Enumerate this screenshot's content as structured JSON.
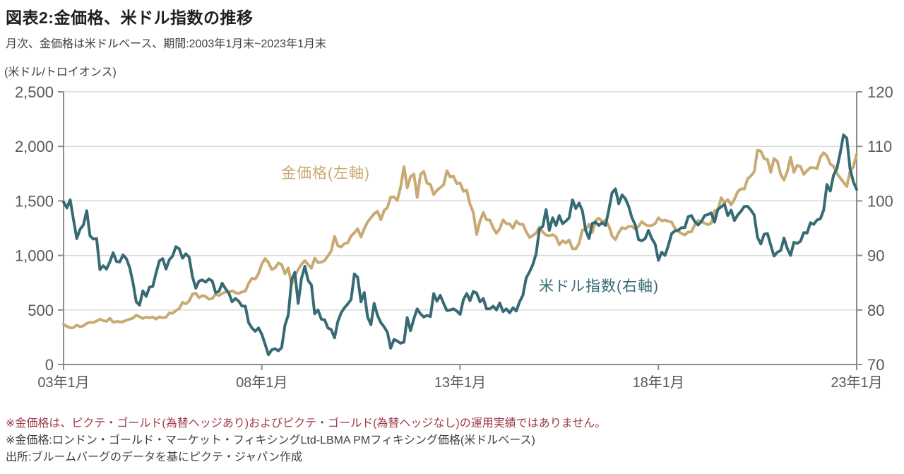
{
  "header": {
    "title": "図表2:金価格、米ドル指数の推移",
    "subtitle": "月次、金価格は米ドルベース、期間:2003年1月末~2023年1月末"
  },
  "footnotes": {
    "note1": "※金価格は、ピクテ・ゴールド(為替ヘッジあり)およびピクテ・ゴールド(為替ヘッジなし)の運用実績ではありません。",
    "note2": "※金価格:ロンドン・ゴールド・マーケット・フィキシングLtd-LBMA PMフィキシング価格(米ドルベース)",
    "source": "出所:ブルームバーグのデータを基にピクテ・ジャパン作成"
  },
  "colors": {
    "gold": "#c8aa73",
    "teal": "#366b74",
    "axis": "#8c8c8c",
    "grid": "#d9d9d9",
    "tick_text": "#595959",
    "note_red": "#9e3a44"
  },
  "chart_data": {
    "type": "line",
    "title": "図表2:金価格、米ドル指数の推移",
    "subtitle": "月次、金価格は米ドルベース、期間:2003年1月末~2023年1月末",
    "unit_label_left": "(米ドル/トロイオンス)",
    "x_start": "2003-01",
    "x_end": "2023-01",
    "x_tick_labels": [
      "03年1月",
      "08年1月",
      "13年1月",
      "18年1月",
      "23年1月"
    ],
    "left_axis": {
      "min": 0,
      "max": 2500,
      "tick_labels": [
        "0",
        "500",
        "1,000",
        "1,500",
        "2,000",
        "2,500"
      ],
      "tick_values": [
        0,
        500,
        1000,
        1500,
        2000,
        2500
      ]
    },
    "right_axis": {
      "min": 70,
      "max": 120,
      "tick_labels": [
        "70",
        "80",
        "90",
        "100",
        "110",
        "120"
      ],
      "tick_values": [
        70,
        80,
        90,
        100,
        110,
        120
      ]
    },
    "grid": "horizontal-only",
    "legend_position": "inline-annotations",
    "series": [
      {
        "key": "gold-price",
        "name": "金価格(左軸)",
        "axis": "left",
        "color": "#c8aa73",
        "values": [
          368,
          350,
          336,
          339,
          361,
          346,
          355,
          376,
          388,
          385,
          398,
          416,
          402,
          396,
          424,
          388,
          394,
          392,
          391,
          407,
          415,
          425,
          453,
          438,
          422,
          435,
          428,
          435,
          417,
          437,
          429,
          433,
          473,
          470,
          495,
          513,
          569,
          556,
          582,
          644,
          653,
          613,
          632,
          623,
          599,
          604,
          647,
          632,
          651,
          665,
          662,
          677,
          659,
          651,
          666,
          672,
          743,
          790,
          783,
          834,
          923,
          971,
          934,
          871,
          886,
          930,
          918,
          833,
          885,
          731,
          815,
          870,
          919,
          952,
          917,
          883,
          975,
          934,
          939,
          953,
          996,
          1040,
          1175,
          1088,
          1078,
          1108,
          1116,
          1179,
          1207,
          1244,
          1169,
          1246,
          1307,
          1346,
          1383,
          1405,
          1327,
          1411,
          1439,
          1535,
          1536,
          1505,
          1628,
          1813,
          1620,
          1722,
          1746,
          1531,
          1744,
          1770,
          1662,
          1651,
          1558,
          1598,
          1622,
          1648,
          1776,
          1719,
          1726,
          1658,
          1664,
          1588,
          1598,
          1469,
          1394,
          1192,
          1314,
          1394,
          1327,
          1324,
          1253,
          1202,
          1244,
          1326,
          1292,
          1288,
          1250,
          1315,
          1285,
          1285,
          1217,
          1164,
          1182,
          1206,
          1260,
          1214,
          1187,
          1180,
          1191,
          1171,
          1098,
          1135,
          1114,
          1142,
          1061,
          1060,
          1111,
          1234,
          1237,
          1285,
          1212,
          1320,
          1342,
          1309,
          1322,
          1272,
          1178,
          1146,
          1210,
          1255,
          1244,
          1266,
          1266,
          1242,
          1267,
          1311,
          1283,
          1271,
          1275,
          1291,
          1345,
          1318,
          1323,
          1313,
          1305,
          1250,
          1221,
          1202,
          1187,
          1215,
          1217,
          1279,
          1320,
          1313,
          1295,
          1282,
          1296,
          1409,
          1414,
          1528,
          1485,
          1511,
          1464,
          1515,
          1584,
          1610,
          1609,
          1703,
          1730,
          1768,
          1964,
          1957,
          1887,
          1878,
          1763,
          1888,
          1863,
          1743,
          1692,
          1768,
          1900,
          1763,
          1826,
          1814,
          1743,
          1777,
          1805,
          1806,
          1795,
          1901,
          1942,
          1912,
          1839,
          1817,
          1753,
          1711,
          1671,
          1633,
          1769,
          1812,
          1928
        ]
      },
      {
        "key": "usd-index",
        "name": "米ドル指数(右軸)",
        "axis": "right",
        "color": "#366b74",
        "values": [
          99.8,
          98.7,
          100.2,
          96.6,
          93.1,
          94.8,
          95.6,
          98.2,
          93.6,
          93.0,
          93.1,
          87.4,
          88.1,
          87.5,
          88.8,
          90.5,
          88.9,
          88.8,
          90.1,
          89.4,
          87.8,
          85.0,
          81.5,
          80.9,
          83.5,
          82.5,
          84.2,
          84.3,
          86.8,
          89.0,
          89.4,
          87.5,
          89.2,
          89.9,
          91.6,
          91.2,
          89.5,
          90.3,
          89.7,
          86.1,
          84.0,
          85.3,
          85.5,
          85.1,
          85.7,
          85.3,
          83.2,
          83.4,
          84.9,
          83.9,
          83.1,
          81.5,
          82.1,
          81.6,
          80.7,
          80.7,
          77.7,
          76.7,
          76.1,
          76.7,
          75.5,
          73.7,
          71.8,
          72.7,
          72.9,
          72.5,
          73.1,
          77.2,
          79.1,
          85.5,
          86.9,
          81.2,
          85.8,
          88.0,
          85.4,
          84.6,
          79.3,
          80.0,
          78.3,
          78.2,
          76.7,
          76.4,
          74.9,
          77.9,
          79.5,
          80.4,
          81.1,
          81.9,
          86.6,
          86.0,
          81.5,
          83.2,
          78.7,
          77.3,
          81.2,
          79.0,
          77.7,
          76.9,
          75.9,
          73.0,
          74.6,
          74.3,
          73.9,
          74.1,
          78.6,
          76.2,
          78.4,
          80.2,
          79.3,
          78.7,
          79.0,
          78.8,
          83.0,
          81.6,
          82.7,
          81.2,
          79.9,
          80.0,
          80.2,
          79.8,
          79.2,
          81.9,
          83.0,
          81.7,
          83.4,
          83.1,
          81.5,
          82.1,
          80.2,
          80.2,
          80.7,
          80.0,
          81.3,
          79.7,
          80.2,
          79.5,
          80.4,
          79.8,
          81.5,
          82.7,
          85.9,
          87.0,
          88.3,
          90.3,
          94.8,
          95.3,
          98.4,
          94.6,
          96.9,
          95.5,
          97.3,
          95.8,
          96.3,
          96.9,
          100.2,
          98.6,
          99.6,
          98.2,
          94.6,
          93.1,
          95.9,
          96.1,
          95.5,
          96.0,
          95.5,
          98.4,
          101.5,
          102.2,
          99.5,
          101.1,
          100.4,
          99.0,
          96.9,
          95.6,
          92.9,
          92.7,
          93.1,
          94.6,
          93.1,
          92.1,
          89.1,
          90.6,
          90.0,
          91.8,
          94.0,
          94.5,
          94.6,
          95.1,
          95.1,
          97.1,
          97.3,
          96.2,
          95.6,
          96.2,
          97.3,
          97.5,
          97.8,
          96.1,
          98.5,
          98.9,
          99.4,
          97.3,
          98.3,
          96.4,
          97.4,
          98.1,
          99.0,
          99.0,
          98.3,
          97.4,
          93.3,
          92.1,
          93.9,
          94.0,
          91.9,
          89.9,
          90.6,
          90.9,
          93.2,
          91.3,
          90.0,
          92.4,
          92.2,
          92.6,
          94.2,
          94.1,
          96.0,
          95.7,
          96.5,
          96.7,
          98.3,
          103.0,
          101.8,
          104.7,
          105.9,
          108.7,
          112.1,
          111.5,
          105.9,
          103.5,
          102.1
        ]
      }
    ]
  }
}
